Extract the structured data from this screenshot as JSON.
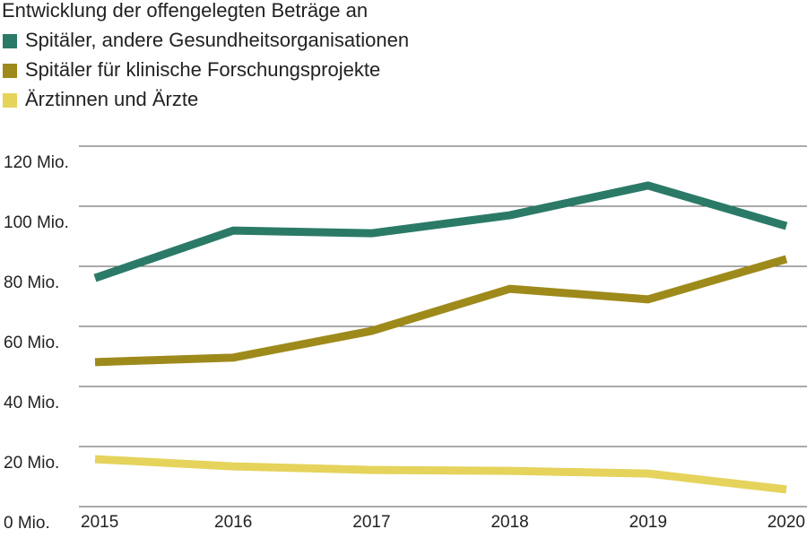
{
  "chart_data": {
    "type": "line",
    "title": "Entwicklung der offengelegten Beträge an",
    "categories": [
      "2015",
      "2016",
      "2017",
      "2018",
      "2019",
      "2020"
    ],
    "series": [
      {
        "name": "Spitäler, andere Gesundheitsorganisationen",
        "color": "#2b7a67",
        "values": [
          76.1,
          91.9,
          91.0,
          97.0,
          106.9,
          93.4
        ]
      },
      {
        "name": "Spitäler für klinische Forschungsprojekte",
        "color": "#9e8a1b",
        "values": [
          48.1,
          49.6,
          58.5,
          72.5,
          69.0,
          82.4
        ]
      },
      {
        "name": "Ärztinnen und Ärzte",
        "color": "#e5d35c",
        "values": [
          15.8,
          13.4,
          12.2,
          11.9,
          11.0,
          5.7
        ]
      }
    ],
    "ylim": [
      0,
      120
    ],
    "yticks": [
      {
        "value": 0,
        "label": "0 Mio."
      },
      {
        "value": 20,
        "label": "20 Mio."
      },
      {
        "value": 40,
        "label": "40 Mio."
      },
      {
        "value": 60,
        "label": "60 Mio."
      },
      {
        "value": 80,
        "label": "80 Mio."
      },
      {
        "value": 100,
        "label": "100 Mio."
      },
      {
        "value": 120,
        "label": "120 Mio."
      }
    ],
    "grid": true
  }
}
